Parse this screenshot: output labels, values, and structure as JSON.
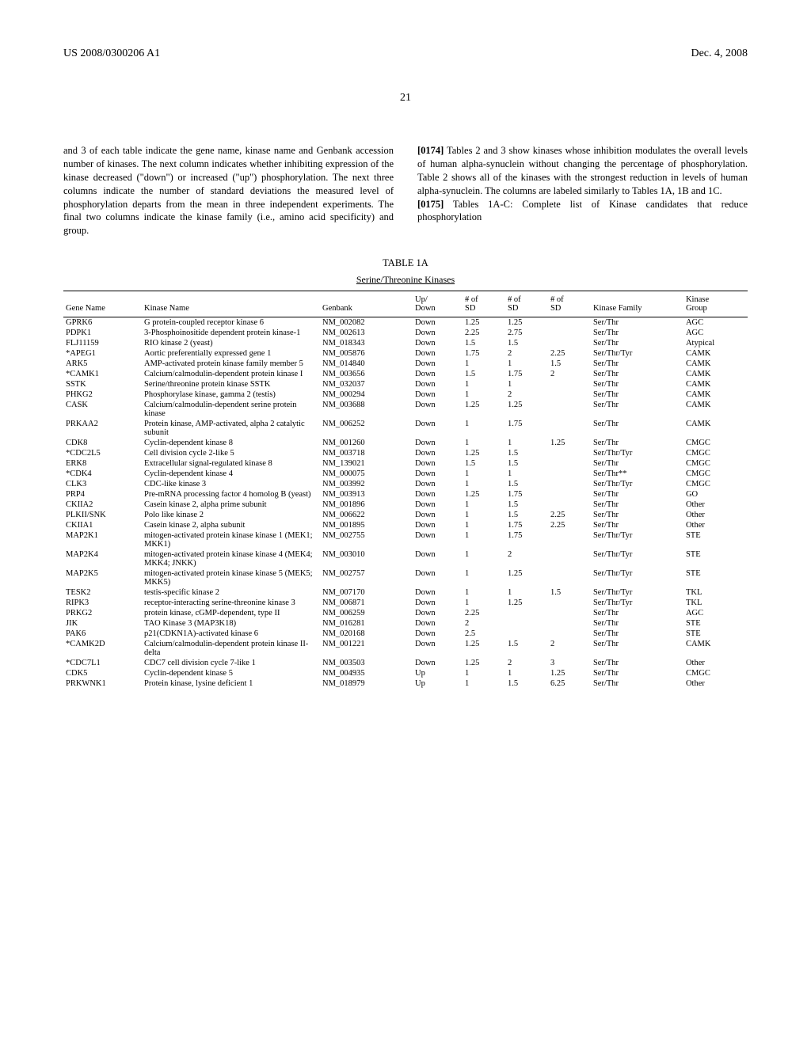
{
  "header": {
    "pub_number": "US 2008/0300206 A1",
    "pub_date": "Dec. 4, 2008"
  },
  "page_number": "21",
  "left_column": {
    "text": "and 3 of each table indicate the gene name, kinase name and Genbank accession number of kinases. The next column indicates whether inhibiting expression of the kinase decreased (\"down\") or increased (\"up\") phosphorylation. The next three columns indicate the number of standard deviations the measured level of phosphorylation departs from the mean in three independent experiments. The final two columns indicate the kinase family (i.e., amino acid specificity) and group."
  },
  "right_column": {
    "para1_num": "[0174]",
    "para1_text": " Tables 2 and 3 show kinases whose inhibition modulates the overall levels of human alpha-synuclein without changing the percentage of phosphorylation. Table 2 shows all of the kinases with the strongest reduction in levels of human alpha-synuclein. The columns are labeled similarly to Tables 1A, 1B and 1C.",
    "para2_num": "[0175]",
    "para2_text": " Tables 1A-C: Complete list of Kinase candidates that reduce phosphorylation"
  },
  "table": {
    "caption": "TABLE 1A",
    "subtitle": "Serine/Threonine Kinases",
    "columns": {
      "gene": "Gene Name",
      "kinase": "Kinase Name",
      "genbank": "Genbank",
      "updown": "Up/\nDown",
      "sd1": "# of\nSD",
      "sd2": "# of\nSD",
      "sd3": "# of\nSD",
      "family": "Kinase Family",
      "group": "Kinase\nGroup"
    },
    "rows": [
      {
        "gene": "GPRK6",
        "kinase": "G protein-coupled receptor kinase 6",
        "genbank": "NM_002082",
        "updown": "Down",
        "sd1": "1.25",
        "sd2": "1.25",
        "sd3": "",
        "family": "Ser/Thr",
        "group": "AGC"
      },
      {
        "gene": "PDPK1",
        "kinase": "3-Phosphoinositide dependent protein kinase-1",
        "genbank": "NM_002613",
        "updown": "Down",
        "sd1": "2.25",
        "sd2": "2.75",
        "sd3": "",
        "family": "Ser/Thr",
        "group": "AGC"
      },
      {
        "gene": "FLJ11159",
        "kinase": "RIO kinase 2 (yeast)",
        "genbank": "NM_018343",
        "updown": "Down",
        "sd1": "1.5",
        "sd2": "1.5",
        "sd3": "",
        "family": "Ser/Thr",
        "group": "Atypical"
      },
      {
        "gene": "*APEG1",
        "kinase": "Aortic preferentially expressed gene 1",
        "genbank": "NM_005876",
        "updown": "Down",
        "sd1": "1.75",
        "sd2": "2",
        "sd3": "2.25",
        "family": "Ser/Thr/Tyr",
        "group": "CAMK"
      },
      {
        "gene": "ARK5",
        "kinase": "AMP-activated protein kinase family member 5",
        "genbank": "NM_014840",
        "updown": "Down",
        "sd1": "1",
        "sd2": "1",
        "sd3": "1.5",
        "family": "Ser/Thr",
        "group": "CAMK"
      },
      {
        "gene": "*CAMK1",
        "kinase": "Calcium/calmodulin-dependent protein kinase I",
        "genbank": "NM_003656",
        "updown": "Down",
        "sd1": "1.5",
        "sd2": "1.75",
        "sd3": "2",
        "family": "Ser/Thr",
        "group": "CAMK"
      },
      {
        "gene": "SSTK",
        "kinase": "Serine/threonine protein kinase SSTK",
        "genbank": "NM_032037",
        "updown": "Down",
        "sd1": "1",
        "sd2": "1",
        "sd3": "",
        "family": "Ser/Thr",
        "group": "CAMK"
      },
      {
        "gene": "PHKG2",
        "kinase": "Phosphorylase kinase, gamma 2 (testis)",
        "genbank": "NM_000294",
        "updown": "Down",
        "sd1": "1",
        "sd2": "2",
        "sd3": "",
        "family": "Ser/Thr",
        "group": "CAMK"
      },
      {
        "gene": "CASK",
        "kinase": "Calcium/calmodulin-dependent serine protein kinase",
        "genbank": "NM_003688",
        "updown": "Down",
        "sd1": "1.25",
        "sd2": "1.25",
        "sd3": "",
        "family": "Ser/Thr",
        "group": "CAMK"
      },
      {
        "gene": "PRKAA2",
        "kinase": "Protein kinase, AMP-activated, alpha 2 catalytic subunit",
        "genbank": "NM_006252",
        "updown": "Down",
        "sd1": "1",
        "sd2": "1.75",
        "sd3": "",
        "family": "Ser/Thr",
        "group": "CAMK"
      },
      {
        "gene": "CDK8",
        "kinase": "Cyclin-dependent kinase 8",
        "genbank": "NM_001260",
        "updown": "Down",
        "sd1": "1",
        "sd2": "1",
        "sd3": "1.25",
        "family": "Ser/Thr",
        "group": "CMGC"
      },
      {
        "gene": "*CDC2L5",
        "kinase": "Cell division cycle 2-like 5",
        "genbank": "NM_003718",
        "updown": "Down",
        "sd1": "1.25",
        "sd2": "1.5",
        "sd3": "",
        "family": "Ser/Thr/Tyr",
        "group": "CMGC"
      },
      {
        "gene": "ERK8",
        "kinase": "Extracellular signal-regulated kinase 8",
        "genbank": "NM_139021",
        "updown": "Down",
        "sd1": "1.5",
        "sd2": "1.5",
        "sd3": "",
        "family": "Ser/Thr",
        "group": "CMGC"
      },
      {
        "gene": "*CDK4",
        "kinase": "Cyclin-dependent kinase 4",
        "genbank": "NM_000075",
        "updown": "Down",
        "sd1": "1",
        "sd2": "1",
        "sd3": "",
        "family": "Ser/Thr**",
        "group": "CMGC"
      },
      {
        "gene": "CLK3",
        "kinase": "CDC-like kinase 3",
        "genbank": "NM_003992",
        "updown": "Down",
        "sd1": "1",
        "sd2": "1.5",
        "sd3": "",
        "family": "Ser/Thr/Tyr",
        "group": "CMGC"
      },
      {
        "gene": "PRP4",
        "kinase": "Pre-mRNA processing factor 4 homolog B (yeast)",
        "genbank": "NM_003913",
        "updown": "Down",
        "sd1": "1.25",
        "sd2": "1.75",
        "sd3": "",
        "family": "Ser/Thr",
        "group": "GO"
      },
      {
        "gene": "CKIIA2",
        "kinase": "Casein kinase 2, alpha prime subunit",
        "genbank": "NM_001896",
        "updown": "Down",
        "sd1": "1",
        "sd2": "1.5",
        "sd3": "",
        "family": "Ser/Thr",
        "group": "Other"
      },
      {
        "gene": "PLKII/SNK",
        "kinase": "Polo like kinase 2",
        "genbank": "NM_006622",
        "updown": "Down",
        "sd1": "1",
        "sd2": "1.5",
        "sd3": "2.25",
        "family": "Ser/Thr",
        "group": "Other"
      },
      {
        "gene": "CKIIA1",
        "kinase": "Casein kinase 2, alpha subunit",
        "genbank": "NM_001895",
        "updown": "Down",
        "sd1": "1",
        "sd2": "1.75",
        "sd3": "2.25",
        "family": "Ser/Thr",
        "group": "Other"
      },
      {
        "gene": "MAP2K1",
        "kinase": "mitogen-activated protein kinase kinase 1 (MEK1; MKK1)",
        "genbank": "NM_002755",
        "updown": "Down",
        "sd1": "1",
        "sd2": "1.75",
        "sd3": "",
        "family": "Ser/Thr/Tyr",
        "group": "STE"
      },
      {
        "gene": "MAP2K4",
        "kinase": "mitogen-activated protein kinase kinase 4 (MEK4; MKK4; JNKK)",
        "genbank": "NM_003010",
        "updown": "Down",
        "sd1": "1",
        "sd2": "2",
        "sd3": "",
        "family": "Ser/Thr/Tyr",
        "group": "STE"
      },
      {
        "gene": "MAP2K5",
        "kinase": "mitogen-activated protein kinase kinase 5 (MEK5; MKK5)",
        "genbank": "NM_002757",
        "updown": "Down",
        "sd1": "1",
        "sd2": "1.25",
        "sd3": "",
        "family": "Ser/Thr/Tyr",
        "group": "STE"
      },
      {
        "gene": "TESK2",
        "kinase": "testis-specific kinase 2",
        "genbank": "NM_007170",
        "updown": "Down",
        "sd1": "1",
        "sd2": "1",
        "sd3": "1.5",
        "family": "Ser/Thr/Tyr",
        "group": "TKL"
      },
      {
        "gene": "RIPK3",
        "kinase": "receptor-interacting serine-threonine kinase 3",
        "genbank": "NM_006871",
        "updown": "Down",
        "sd1": "1",
        "sd2": "1.25",
        "sd3": "",
        "family": "Ser/Thr/Tyr",
        "group": "TKL"
      },
      {
        "gene": "PRKG2",
        "kinase": "protein kinase, cGMP-dependent, type II",
        "genbank": "NM_006259",
        "updown": "Down",
        "sd1": "2.25",
        "sd2": "",
        "sd3": "",
        "family": "Ser/Thr",
        "group": "AGC"
      },
      {
        "gene": "JIK",
        "kinase": "TAO Kinase 3 (MAP3K18)",
        "genbank": "NM_016281",
        "updown": "Down",
        "sd1": "2",
        "sd2": "",
        "sd3": "",
        "family": "Ser/Thr",
        "group": "STE"
      },
      {
        "gene": "PAK6",
        "kinase": "p21(CDKN1A)-activated kinase 6",
        "genbank": "NM_020168",
        "updown": "Down",
        "sd1": "2.5",
        "sd2": "",
        "sd3": "",
        "family": "Ser/Thr",
        "group": "STE"
      },
      {
        "gene": "*CAMK2D",
        "kinase": "Calcium/calmodulin-dependent protein kinase II-delta",
        "genbank": "NM_001221",
        "updown": "Down",
        "sd1": "1.25",
        "sd2": "1.5",
        "sd3": "2",
        "family": "Ser/Thr",
        "group": "CAMK"
      },
      {
        "gene": "*CDC7L1",
        "kinase": "CDC7 cell division cycle 7-like 1",
        "genbank": "NM_003503",
        "updown": "Down",
        "sd1": "1.25",
        "sd2": "2",
        "sd3": "3",
        "family": "Ser/Thr",
        "group": "Other"
      },
      {
        "gene": "CDK5",
        "kinase": "Cyclin-dependent kinase 5",
        "genbank": "NM_004935",
        "updown": "Up",
        "sd1": "1",
        "sd2": "1",
        "sd3": "1.25",
        "family": "Ser/Thr",
        "group": "CMGC"
      },
      {
        "gene": "PRKWNK1",
        "kinase": "Protein kinase, lysine deficient 1",
        "genbank": "NM_018979",
        "updown": "Up",
        "sd1": "1",
        "sd2": "1.5",
        "sd3": "6.25",
        "family": "Ser/Thr",
        "group": "Other"
      }
    ]
  }
}
